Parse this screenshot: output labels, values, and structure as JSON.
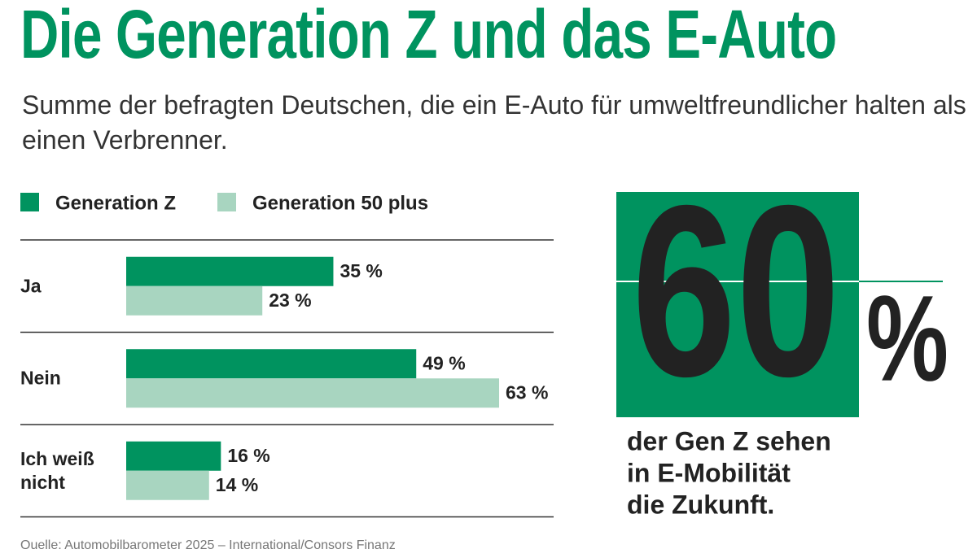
{
  "chart_data": {
    "type": "bar",
    "orientation": "horizontal",
    "title": "Die Generation Z und das E-Auto",
    "subtitle": "Summe der befragten Deutschen, die ein E-Auto für umweltfreundlicher halten als einen Verbrenner.",
    "categories": [
      "Ja",
      "Nein",
      "Ich weiß nicht"
    ],
    "series": [
      {
        "name": "Generation Z",
        "color": "#00935f",
        "values": [
          35,
          49,
          16
        ],
        "value_labels": [
          "35 %",
          "49 %",
          "16 %"
        ]
      },
      {
        "name": "Generation 50 plus",
        "color": "#a8d5c0",
        "values": [
          23,
          63,
          14
        ],
        "value_labels": [
          "23 %",
          "63 %",
          "14 %"
        ]
      }
    ],
    "callout": {
      "value": 60,
      "unit": "%",
      "text": [
        "der Gen Z sehen",
        "in E-Mobilität",
        "die Zukunft."
      ]
    },
    "source": "Quelle: Automobilbarometer 2025 – International/Consors Finanz"
  }
}
